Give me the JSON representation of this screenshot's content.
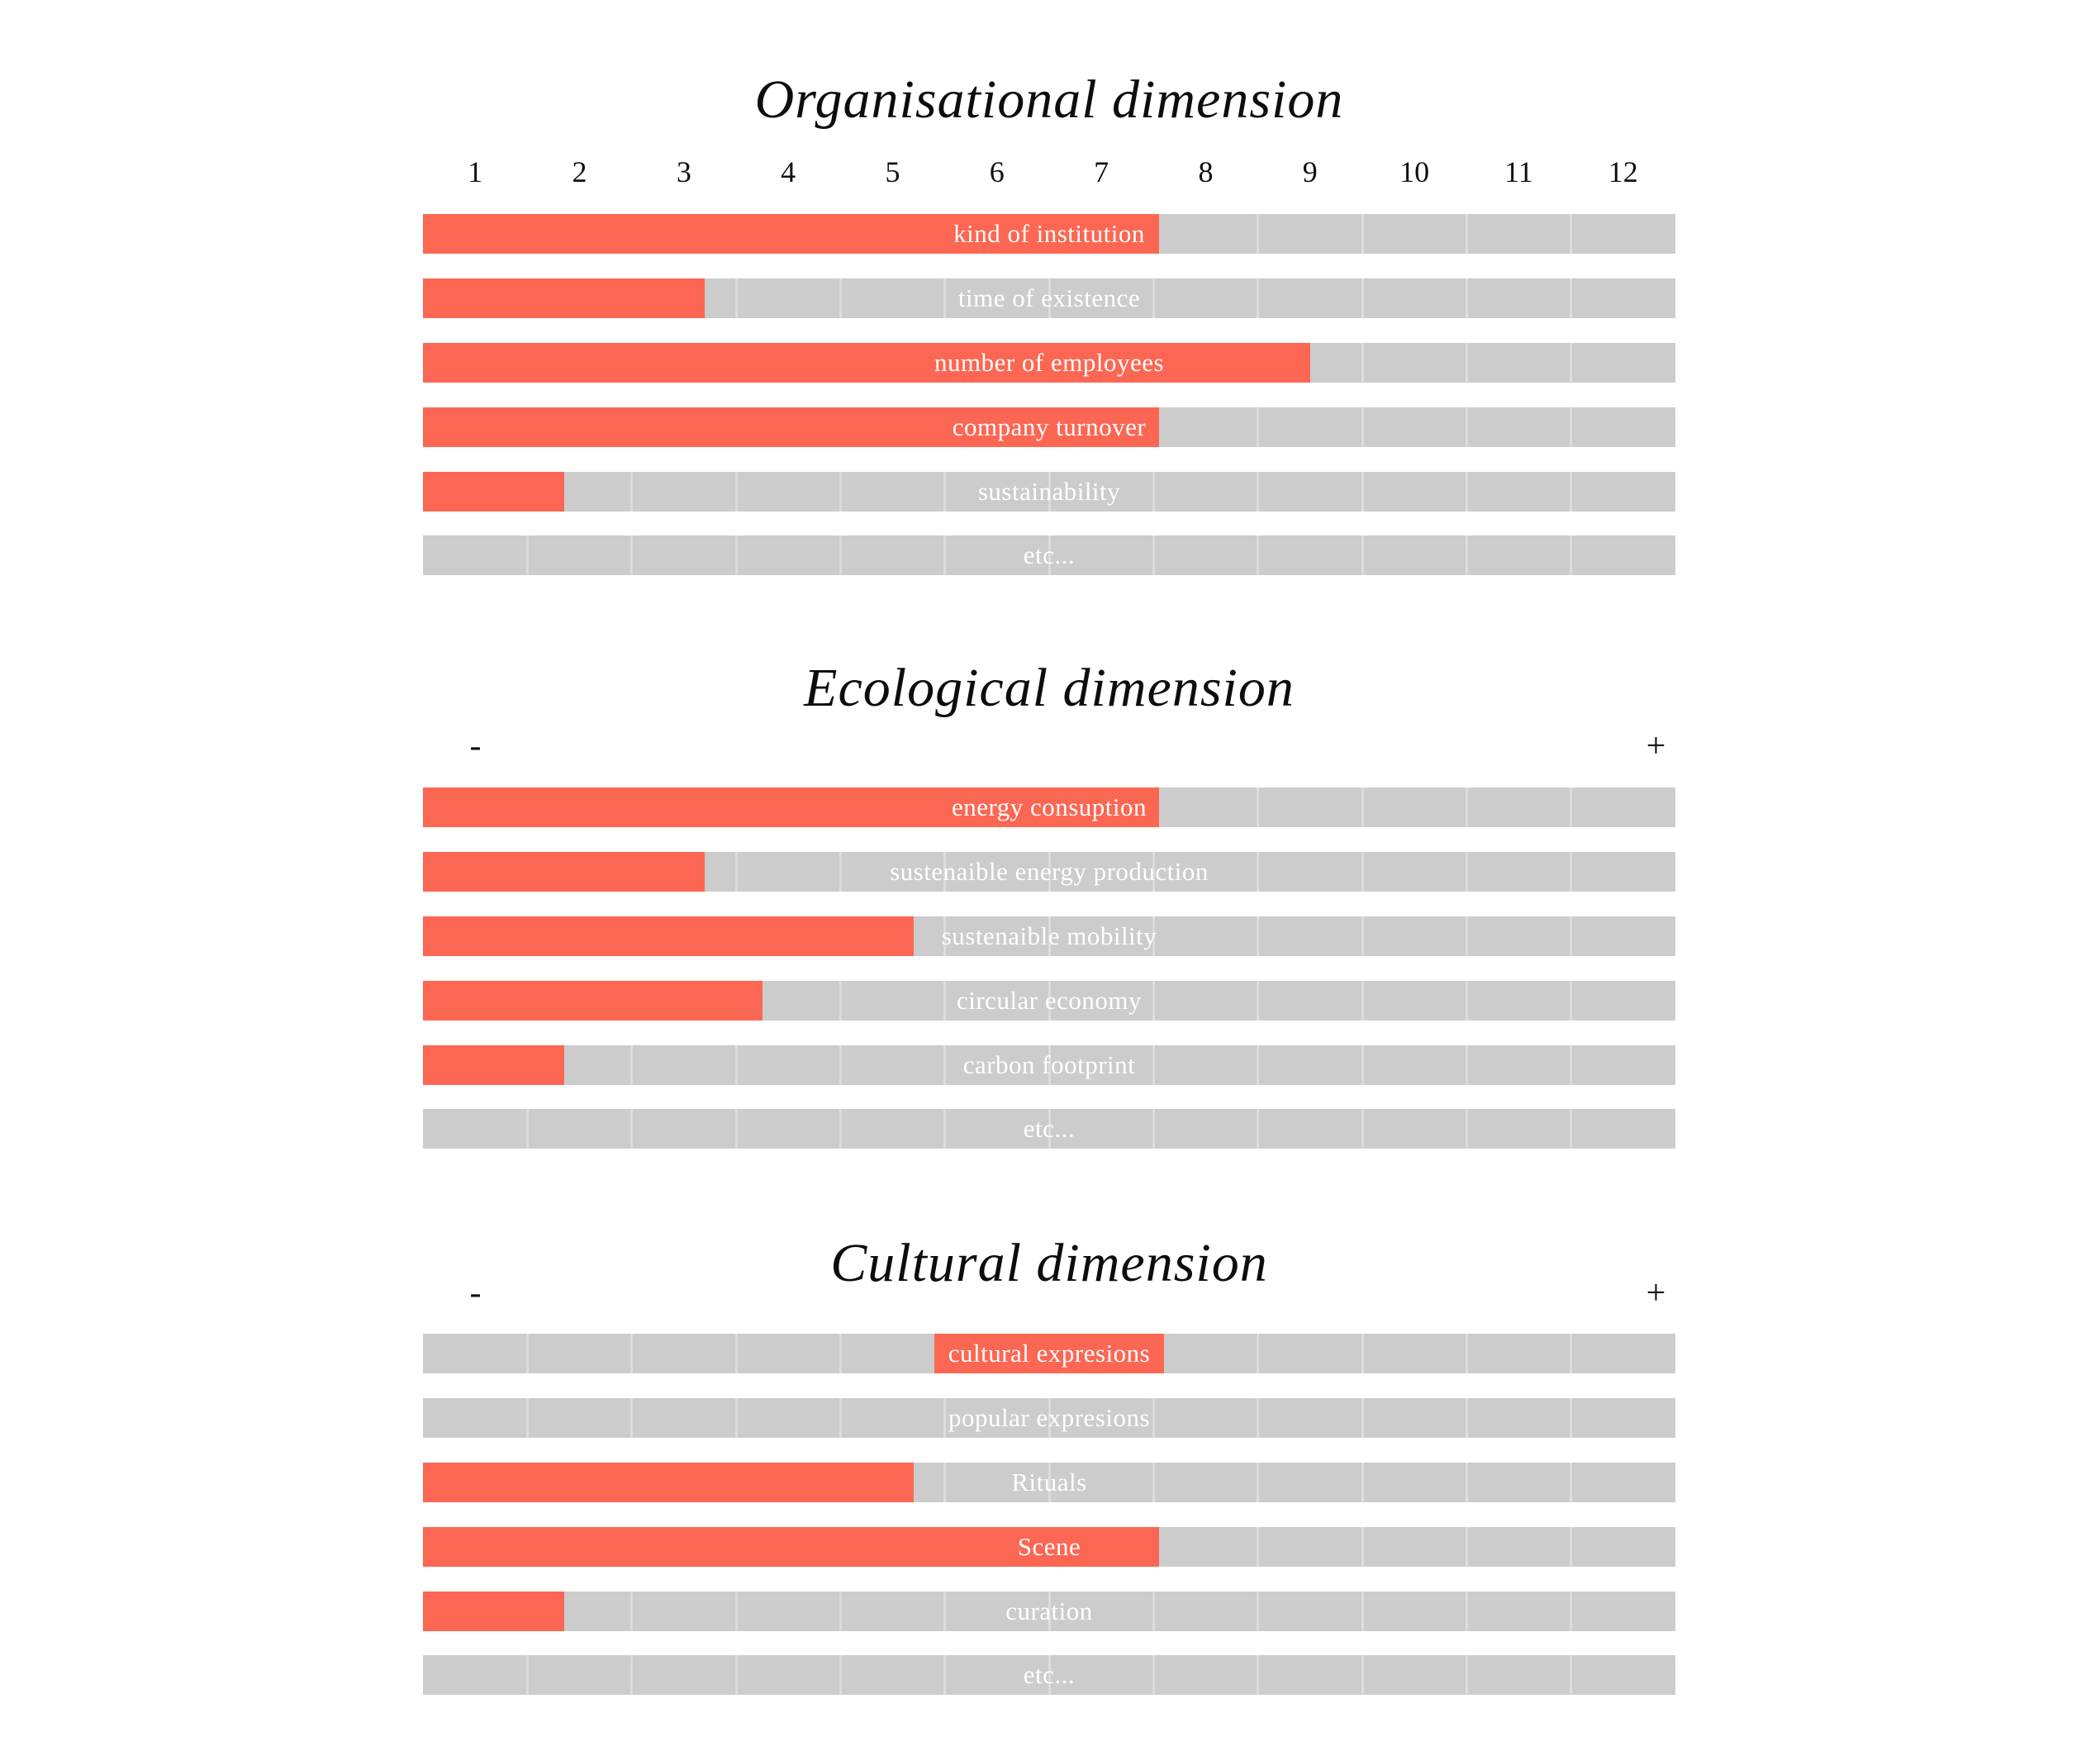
{
  "colors": {
    "fill_red": "#fc6753",
    "track_gray": "#cccccc",
    "divider_gray": "#dcdcdc",
    "label_white": "#ffffff",
    "title_black": "#0d0d0d",
    "background": "#ffffff"
  },
  "chart_data": [
    {
      "type": "bar",
      "orientation": "horizontal",
      "title": "Organisational dimension",
      "xlim": [
        0,
        12
      ],
      "segments": 12,
      "grid": "segment-dividers",
      "legend": "none",
      "axis": {
        "kind": "numeric-ticks",
        "ticks": [
          "1",
          "2",
          "3",
          "4",
          "5",
          "6",
          "7",
          "8",
          "9",
          "10",
          "11",
          "12"
        ]
      },
      "rows": [
        {
          "label": "kind of institution",
          "fill_start": 0,
          "fill_end": 7.05
        },
        {
          "label": "time of existence",
          "fill_start": 0,
          "fill_end": 2.7
        },
        {
          "label": "number of employees",
          "fill_start": 0,
          "fill_end": 8.5
        },
        {
          "label": "company turnover",
          "fill_start": 0,
          "fill_end": 7.05
        },
        {
          "label": "sustainability",
          "fill_start": 0,
          "fill_end": 1.35
        },
        {
          "label": "etc...",
          "fill_start": 0,
          "fill_end": 0
        }
      ]
    },
    {
      "type": "bar",
      "orientation": "horizontal",
      "title": "Ecological dimension",
      "xlim": [
        0,
        12
      ],
      "segments": 12,
      "grid": "segment-dividers",
      "legend": "none",
      "axis": {
        "kind": "minus-plus",
        "left_label": "-",
        "right_label": "+"
      },
      "rows": [
        {
          "label": "energy consuption",
          "fill_start": 0,
          "fill_end": 7.05
        },
        {
          "label": "sustenaible energy production",
          "fill_start": 0,
          "fill_end": 2.7
        },
        {
          "label": "sustenaible mobility",
          "fill_start": 0,
          "fill_end": 4.7
        },
        {
          "label": "circular economy",
          "fill_start": 0,
          "fill_end": 3.25
        },
        {
          "label": "carbon footprint",
          "fill_start": 0,
          "fill_end": 1.35
        },
        {
          "label": "etc...",
          "fill_start": 0,
          "fill_end": 0
        }
      ]
    },
    {
      "type": "bar",
      "orientation": "horizontal",
      "title": "Cultural dimension",
      "xlim": [
        0,
        12
      ],
      "segments": 12,
      "grid": "segment-dividers",
      "legend": "none",
      "axis": {
        "kind": "minus-plus",
        "left_label": "-",
        "right_label": "+"
      },
      "rows": [
        {
          "label": "cultural expresions",
          "fill_start": 4.9,
          "fill_end": 7.1
        },
        {
          "label": "popular expresions",
          "fill_start": 0,
          "fill_end": 0
        },
        {
          "label": "Rituals",
          "fill_start": 0,
          "fill_end": 4.7
        },
        {
          "label": "Scene",
          "fill_start": 0,
          "fill_end": 7.05
        },
        {
          "label": "curation",
          "fill_start": 0,
          "fill_end": 1.35
        },
        {
          "label": "etc...",
          "fill_start": 0,
          "fill_end": 0
        }
      ]
    }
  ]
}
